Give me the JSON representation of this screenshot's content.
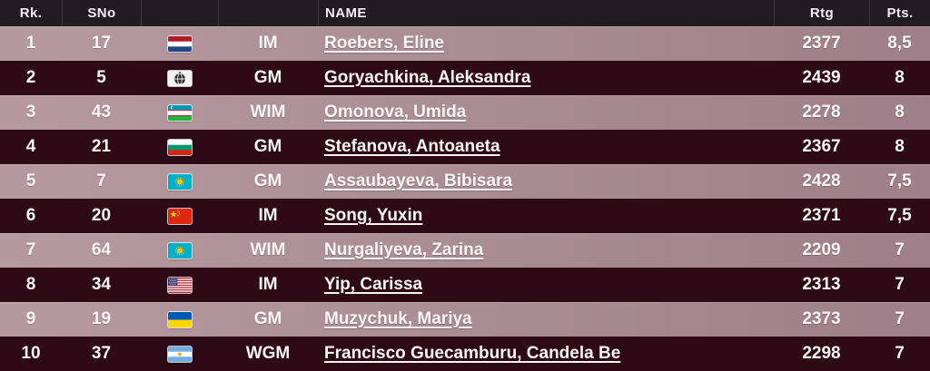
{
  "table": {
    "headers": {
      "rank": "Rk.",
      "sno": "SNo",
      "flag": "",
      "title": "",
      "name": "NAME",
      "rating": "Rtg",
      "points": "Pts."
    },
    "rows": [
      {
        "rank": "1",
        "sno": "17",
        "flag": "NED",
        "title": "IM",
        "name": "Roebers, Eline",
        "rating": "2377",
        "points": "8,5"
      },
      {
        "rank": "2",
        "sno": "5",
        "flag": "FIDE",
        "title": "GM",
        "name": "Goryachkina, Aleksandra",
        "rating": "2439",
        "points": "8"
      },
      {
        "rank": "3",
        "sno": "43",
        "flag": "UZB",
        "title": "WIM",
        "name": "Omonova, Umida",
        "rating": "2278",
        "points": "8"
      },
      {
        "rank": "4",
        "sno": "21",
        "flag": "BUL",
        "title": "GM",
        "name": "Stefanova, Antoaneta",
        "rating": "2367",
        "points": "8"
      },
      {
        "rank": "5",
        "sno": "7",
        "flag": "KAZ",
        "title": "GM",
        "name": "Assaubayeva, Bibisara",
        "rating": "2428",
        "points": "7,5"
      },
      {
        "rank": "6",
        "sno": "20",
        "flag": "CHN",
        "title": "IM",
        "name": "Song, Yuxin",
        "rating": "2371",
        "points": "7,5"
      },
      {
        "rank": "7",
        "sno": "64",
        "flag": "KAZ",
        "title": "WIM",
        "name": "Nurgaliyeva, Zarina",
        "rating": "2209",
        "points": "7"
      },
      {
        "rank": "8",
        "sno": "34",
        "flag": "USA",
        "title": "IM",
        "name": "Yip, Carissa",
        "rating": "2313",
        "points": "7"
      },
      {
        "rank": "9",
        "sno": "19",
        "flag": "UKR",
        "title": "GM",
        "name": "Muzychuk, Mariya",
        "rating": "2373",
        "points": "7"
      },
      {
        "rank": "10",
        "sno": "37",
        "flag": "ARG",
        "title": "WGM",
        "name": "Francisco Guecamburu, Candela Be",
        "rating": "2298",
        "points": "7"
      }
    ]
  },
  "colors": {
    "header_bg": "#211c20",
    "row_dark_bg": "#2e0a17",
    "row_light_bg": "#a98b92",
    "text": "#faf6f4"
  }
}
